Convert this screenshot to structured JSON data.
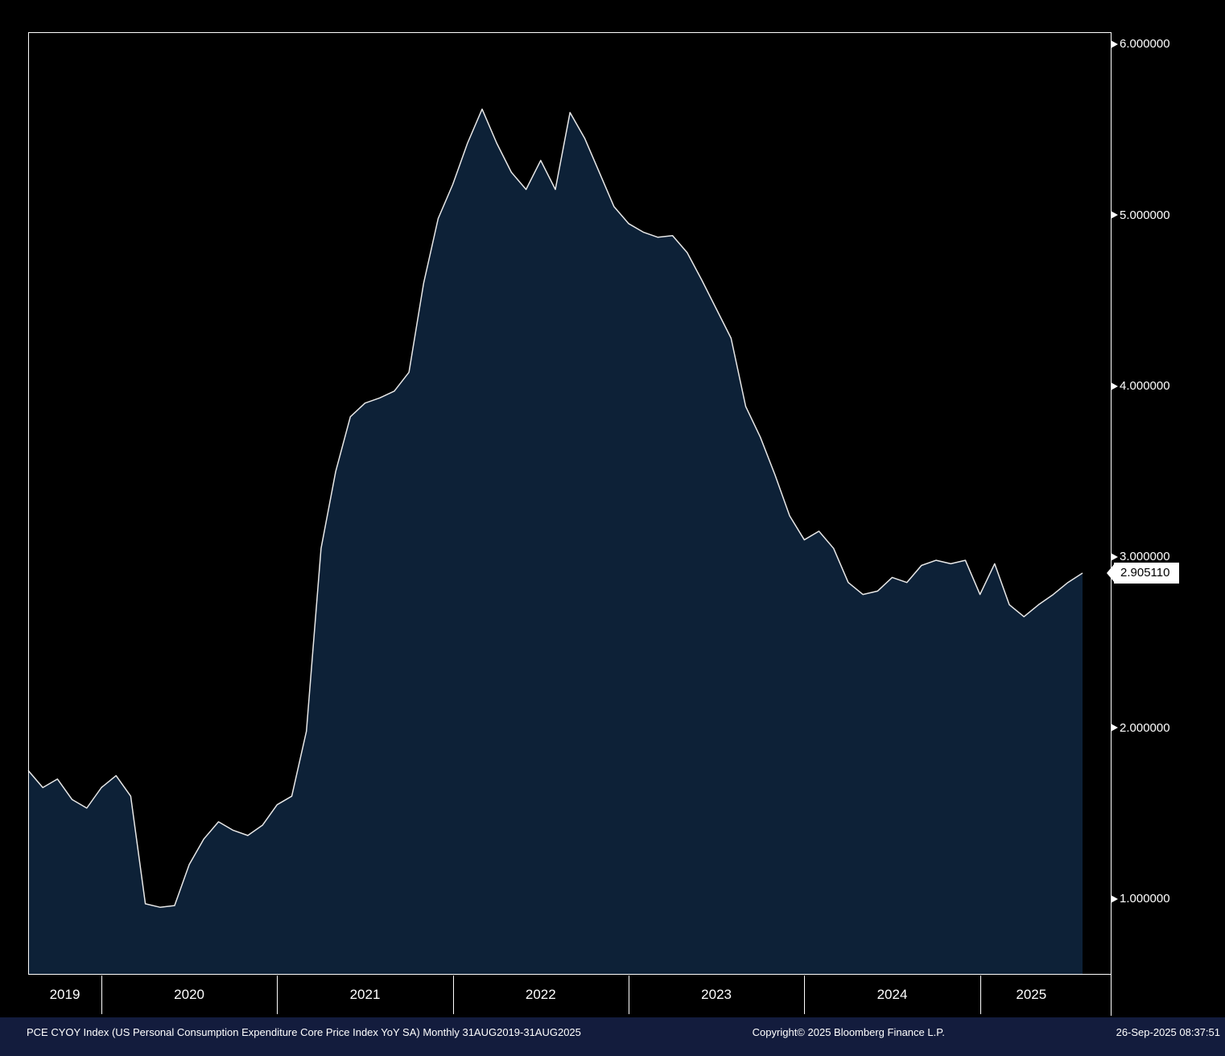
{
  "colors": {
    "background": "#000000",
    "fill": "#0d2137",
    "line": "#e8e8e8",
    "axis": "#ffffff",
    "footer_bg": "#131c3d",
    "tag_bg": "#ffffff",
    "tag_text": "#000000"
  },
  "chart_data": {
    "type": "area",
    "title": "PCE CYOY Index (US Personal Consumption Expenditure Core Price Index YoY SA)",
    "subtitle": "Monthly 31AUG2019-31AUG2025",
    "x_start": "2019-08",
    "x_end": "2025-08",
    "x_step": "1 month",
    "x_year_labels": [
      "2019",
      "2020",
      "2021",
      "2022",
      "2023",
      "2024",
      "2025"
    ],
    "y_ticks": [
      "6.000000",
      "5.000000",
      "4.000000",
      "3.000000",
      "2.000000",
      "1.000000"
    ],
    "ylim": [
      0.56,
      6.07
    ],
    "grid": false,
    "legend": "none",
    "values": [
      1.75,
      1.65,
      1.7,
      1.58,
      1.53,
      1.65,
      1.72,
      1.6,
      0.97,
      0.95,
      0.96,
      1.2,
      1.35,
      1.45,
      1.4,
      1.37,
      1.43,
      1.55,
      1.6,
      1.98,
      3.05,
      3.5,
      3.82,
      3.9,
      3.93,
      3.97,
      4.08,
      4.6,
      4.98,
      5.18,
      5.42,
      5.62,
      5.42,
      5.25,
      5.15,
      5.32,
      5.15,
      5.6,
      5.45,
      5.25,
      5.05,
      4.95,
      4.9,
      4.87,
      4.88,
      4.78,
      4.62,
      4.45,
      4.28,
      3.88,
      3.7,
      3.48,
      3.24,
      3.1,
      3.15,
      3.05,
      2.85,
      2.78,
      2.8,
      2.88,
      2.85,
      2.95,
      2.98,
      2.96,
      2.98,
      2.78,
      2.96,
      2.72,
      2.65,
      2.72,
      2.78,
      2.85,
      2.90511
    ],
    "last_value_label": "2.905110"
  },
  "footer": {
    "left": "PCE CYOY Index (US Personal Consumption Expenditure Core Price Index YoY SA)  Monthly 31AUG2019-31AUG2025",
    "copyright": "Copyright© 2025 Bloomberg Finance L.P.",
    "timestamp": "26-Sep-2025 08:37:51"
  }
}
